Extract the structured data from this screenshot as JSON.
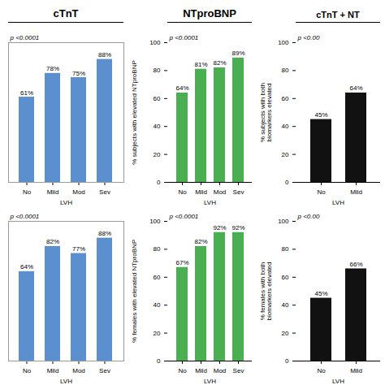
{
  "chart_data": [
    {
      "type": "bar",
      "title": "cTnT",
      "categories": [
        "No",
        "Mild",
        "Mod",
        "Sev"
      ],
      "values": [
        61,
        78,
        75,
        88
      ],
      "value_labels": [
        "61%",
        "78%",
        "75%",
        "88%"
      ],
      "data_labels": true,
      "color": "#5b8fce",
      "ylim": [
        0,
        100
      ],
      "tick_labels": "x",
      "xlabel": "LVH",
      "annotations": [
        "p <0.0001"
      ]
    },
    {
      "type": "bar",
      "title": "NTproBNP",
      "categories": [
        "No",
        "Mild",
        "Mod",
        "Sev"
      ],
      "values": [
        64,
        81,
        82,
        89
      ],
      "value_labels": [
        "64%",
        "81%",
        "82%",
        "89%"
      ],
      "data_labels": true,
      "color": "#4aaf50",
      "ylim": [
        0,
        100
      ],
      "yticks": [
        0,
        20,
        40,
        60,
        80,
        100
      ],
      "xlabel": "LVH",
      "ylabel": "% subjects with elevated NTproBNP",
      "annotations": [
        "p <0.0001"
      ]
    },
    {
      "type": "bar",
      "title": "cTnT + NT",
      "categories": [
        "No",
        "Mild"
      ],
      "values": [
        45,
        64
      ],
      "value_labels": [
        "45%",
        "64%"
      ],
      "data_labels": true,
      "color": "#111111",
      "ylim": [
        0,
        100
      ],
      "yticks": [
        0,
        20,
        40,
        60,
        80,
        100
      ],
      "xlabel": "LVH",
      "ylabel": "% subjects with both\nbiomarkers elevated",
      "annotations": [
        "p <0.00"
      ]
    },
    {
      "type": "bar",
      "categories": [
        "No",
        "Mild",
        "Mod",
        "Sev"
      ],
      "values": [
        64,
        82,
        77,
        88
      ],
      "value_labels": [
        "64%",
        "82%",
        "77%",
        "88%"
      ],
      "data_labels": true,
      "color": "#5b8fce",
      "ylim": [
        0,
        100
      ],
      "tick_labels": "x",
      "xlabel": "LVH",
      "annotations": [
        "p <0.0001"
      ]
    },
    {
      "type": "bar",
      "categories": [
        "No",
        "Mild",
        "Mod",
        "Sev"
      ],
      "values": [
        67,
        82,
        92,
        92
      ],
      "value_labels": [
        "67%",
        "82%",
        "92%",
        "92%"
      ],
      "data_labels": true,
      "color": "#4aaf50",
      "ylim": [
        0,
        100
      ],
      "yticks": [
        0,
        20,
        40,
        60,
        80,
        100
      ],
      "xlabel": "LVH",
      "ylabel": "% females with elevated NTproBNP",
      "annotations": [
        "p <0.0001"
      ]
    },
    {
      "type": "bar",
      "categories": [
        "No",
        "Mild"
      ],
      "values": [
        45,
        66
      ],
      "value_labels": [
        "45%",
        "66%"
      ],
      "data_labels": true,
      "color": "#111111",
      "ylim": [
        0,
        100
      ],
      "yticks": [
        0,
        20,
        40,
        60,
        80,
        100
      ],
      "xlabel": "LVH",
      "ylabel": "% females with both\nbiomarkers elevated",
      "annotations": [
        "p <0.00"
      ]
    }
  ]
}
